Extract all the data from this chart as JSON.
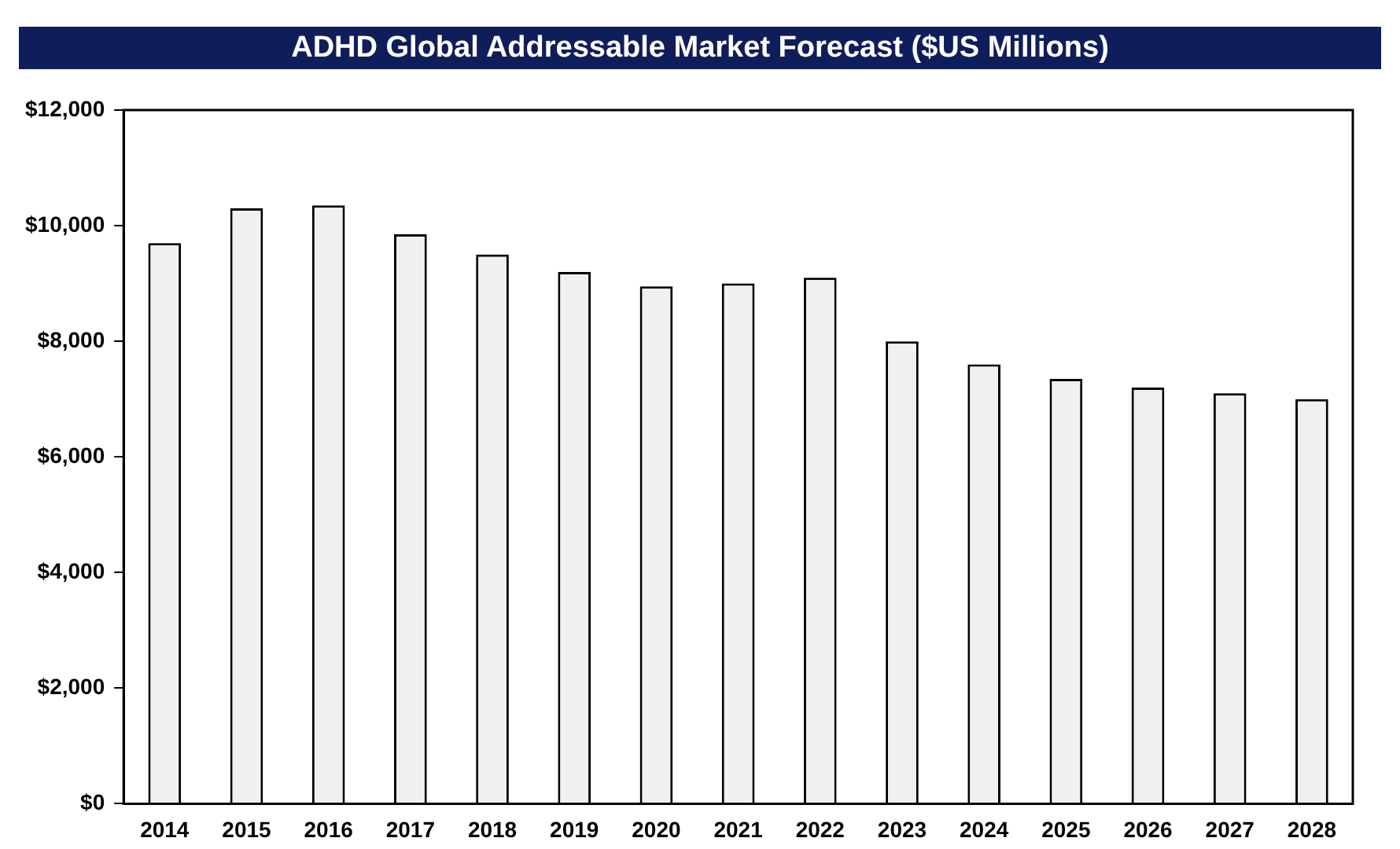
{
  "chart_data": {
    "type": "bar",
    "title": "ADHD Global Addressable Market Forecast ($US Millions)",
    "categories": [
      "2014",
      "2015",
      "2016",
      "2017",
      "2018",
      "2019",
      "2020",
      "2021",
      "2022",
      "2023",
      "2024",
      "2025",
      "2026",
      "2027",
      "2028"
    ],
    "values": [
      9700,
      10300,
      10350,
      9850,
      9500,
      9200,
      8950,
      9000,
      9100,
      8000,
      7600,
      7350,
      7200,
      7100,
      7000
    ],
    "color": "#f0f0f0",
    "ylim": [
      0,
      12000
    ],
    "yticks": [
      {
        "value": 0,
        "label": "$0"
      },
      {
        "value": 2000,
        "label": "$2,000"
      },
      {
        "value": 4000,
        "label": "$4,000"
      },
      {
        "value": 6000,
        "label": "$6,000"
      },
      {
        "value": 8000,
        "label": "$8,000"
      },
      {
        "value": 10000,
        "label": "$10,000"
      },
      {
        "value": 12000,
        "label": "$12,000"
      }
    ],
    "grid": false,
    "legend": false
  }
}
